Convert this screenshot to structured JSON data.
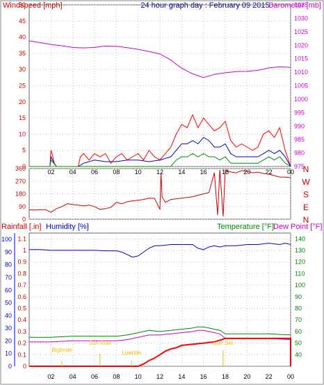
{
  "chart_data": [
    {
      "type": "line",
      "title": "24 hour graph day : February 09 2015",
      "left_axis_label": "Windspeed [mph]",
      "right_axis_label": "Barometer [mb]",
      "x_ticks": [
        "02",
        "04",
        "06",
        "08",
        "10",
        "12",
        "14",
        "16",
        "18",
        "20",
        "22",
        "00"
      ],
      "left_ticks": [
        "0",
        "5",
        "10",
        "15",
        "20",
        "25",
        "30",
        "35",
        "40",
        "45",
        "50"
      ],
      "right_ticks": [
        "975",
        "980",
        "985",
        "990",
        "995",
        "1000",
        "1005",
        "1010",
        "1015",
        "1020",
        "1025",
        "1030",
        "1035"
      ],
      "ylim_left": [
        0,
        50
      ],
      "ylim_right": [
        975,
        1035
      ],
      "colors": {
        "windspeed": "#cc0000",
        "gust": "#ff0000",
        "average": "#0000cc",
        "low": "#008800",
        "barometer": "#cc00cc"
      },
      "series": [
        {
          "axis": "right",
          "color": "#cc00cc",
          "x": [
            0,
            1,
            2,
            3,
            4,
            5,
            6,
            7,
            8,
            9,
            10,
            11,
            12,
            13,
            14,
            15,
            16,
            17,
            18,
            19,
            20,
            21,
            22,
            23,
            24
          ],
          "values": [
            1021.6,
            1021,
            1020.3,
            1019.8,
            1019.2,
            1019,
            1019.2,
            1019.7,
            1019.6,
            1019.1,
            1018.5,
            1017.7,
            1016.8,
            1014.5,
            1011.5,
            1009.4,
            1008,
            1009.2,
            1009.8,
            1010.2,
            1010.3,
            1010.7,
            1011.6,
            1012,
            1011.8
          ]
        },
        {
          "axis": "left",
          "color": "#ff0000",
          "x": [
            0,
            1.9,
            2,
            2.1,
            2.3,
            2.5,
            4.5,
            4.7,
            5,
            5.5,
            6,
            6.5,
            7,
            7.5,
            8,
            8.5,
            9,
            9.5,
            10,
            10.5,
            11,
            11.5,
            12,
            12.5,
            13,
            13.5,
            14,
            14.5,
            15,
            15.5,
            16,
            16.5,
            17,
            17.5,
            18,
            18.5,
            19,
            19.5,
            20,
            20.5,
            21,
            21.5,
            22,
            22.5,
            23,
            23.5,
            24
          ],
          "values": [
            0,
            0,
            5,
            4,
            1,
            0,
            0,
            3,
            4,
            2,
            4,
            3,
            4,
            1,
            3,
            4,
            2,
            3,
            4,
            2,
            5,
            3,
            2,
            4,
            6,
            10,
            13,
            12,
            16,
            12,
            15,
            13,
            11,
            12,
            14,
            8,
            6,
            7,
            6,
            5,
            6,
            10,
            11,
            9,
            12,
            5,
            0
          ]
        },
        {
          "axis": "left",
          "color": "#0000cc",
          "x": [
            0,
            1.9,
            2,
            2.3,
            2.5,
            4.5,
            5,
            6,
            7,
            8,
            9,
            10,
            11,
            12,
            13,
            13.5,
            14,
            14.5,
            15,
            15.5,
            16,
            16.5,
            17,
            17.5,
            18,
            18.5,
            19,
            20,
            21,
            21.5,
            22,
            22.5,
            23,
            23.5,
            24
          ],
          "values": [
            0,
            0,
            3,
            1,
            0,
            0,
            1,
            2,
            1.5,
            1.5,
            2,
            2,
            1.5,
            2,
            3,
            5,
            7,
            7,
            8,
            7,
            9,
            8,
            6,
            6,
            7,
            4,
            3,
            3,
            3,
            4,
            5,
            4,
            5,
            3,
            0
          ]
        },
        {
          "axis": "left",
          "color": "#008800",
          "x": [
            0,
            1.9,
            2,
            2.5,
            13,
            13.5,
            14,
            14.5,
            15,
            15.5,
            16,
            16.5,
            17,
            17.5,
            18,
            18.5,
            19,
            20,
            21,
            21.5,
            22,
            22.5,
            23,
            23.5,
            24
          ],
          "values": [
            0,
            0,
            2,
            0,
            0,
            2,
            3,
            3,
            4,
            3,
            4,
            3,
            3,
            2,
            3,
            1,
            1,
            1,
            1,
            2,
            3,
            2,
            3,
            1,
            0
          ]
        }
      ]
    },
    {
      "type": "line",
      "title": "",
      "right_labels": [
        "N",
        "W",
        "S",
        "E",
        "N"
      ],
      "left_ticks": [
        "0",
        "90",
        "180",
        "270",
        "360"
      ],
      "x_ticks": [
        "02",
        "04",
        "06",
        "08",
        "10",
        "12",
        "14",
        "16",
        "18",
        "20",
        "22",
        "00"
      ],
      "ylim": [
        0,
        360
      ],
      "series": [
        {
          "color": "#cc0000",
          "x": [
            0,
            0.5,
            1,
            1.5,
            2,
            2.5,
            3,
            3.5,
            4,
            4.5,
            5,
            5.5,
            6,
            6.5,
            7,
            7.5,
            8,
            8.5,
            9,
            9.5,
            10,
            10.5,
            11,
            11.5,
            12,
            12.1,
            12.2,
            12.5,
            13,
            13.5,
            14,
            14.5,
            15,
            15.5,
            16,
            16.5,
            17,
            17.3,
            17.5,
            17.8,
            18,
            18.3,
            18.6,
            19,
            19.5,
            20,
            20.5,
            21,
            21.5,
            22,
            22.5,
            23,
            23.5,
            24
          ],
          "values": [
            66,
            65,
            67,
            68,
            50,
            75,
            90,
            110,
            105,
            100,
            95,
            100,
            90,
            70,
            75,
            85,
            120,
            110,
            125,
            130,
            135,
            140,
            150,
            148,
            70,
            330,
            160,
            120,
            140,
            145,
            150,
            155,
            160,
            170,
            180,
            190,
            330,
            30,
            350,
            20,
            350,
            340,
            335,
            330,
            345,
            340,
            330,
            335,
            325,
            320,
            310,
            300,
            300,
            295
          ]
        }
      ]
    },
    {
      "type": "line",
      "title": "",
      "axis_labels": [
        "Rainfall [.in]",
        "Humidity [%]",
        "Temperature [°F]",
        "Dew Point [°F]"
      ],
      "rain_ticks": [
        "0",
        "0.1",
        "0.2",
        "0.3",
        "0.4",
        "0.5",
        "0.6",
        "0.7",
        "0.8",
        "0.9",
        "1",
        "1.1"
      ],
      "humidity_ticks": [
        "0",
        "10",
        "20",
        "30",
        "40",
        "50",
        "60",
        "70",
        "80",
        "90",
        "100"
      ],
      "temp_ticks": [
        "40",
        "50",
        "60",
        "70",
        "80",
        "90",
        "100",
        "110",
        "120",
        "130",
        "140"
      ],
      "x_ticks": [
        "02",
        "04",
        "06",
        "08",
        "10",
        "12",
        "14",
        "16",
        "18",
        "20",
        "22",
        "00"
      ],
      "annotations": [
        "Bigbride",
        "Sun Rise",
        "Lowride",
        "Sun Set"
      ],
      "series": [
        {
          "name": "Humidity",
          "color": "#0000cc",
          "unit": "%",
          "x": [
            0,
            1,
            2,
            3,
            4,
            5,
            6,
            7,
            8,
            8.5,
            9,
            9.5,
            10,
            10.5,
            11,
            11.5,
            12,
            13,
            14,
            15,
            15.5,
            16,
            16.5,
            17,
            17.5,
            18,
            19,
            20,
            21,
            22,
            23,
            23.5,
            24
          ],
          "values": [
            92,
            92,
            91.5,
            91.5,
            91.5,
            91.5,
            91.5,
            91,
            91,
            90,
            88,
            86,
            87,
            90,
            93,
            95,
            95,
            96,
            96,
            96,
            93,
            92,
            94,
            95,
            94,
            95,
            95,
            96,
            96,
            97,
            96,
            97,
            96
          ]
        },
        {
          "name": "Temperature",
          "color": "#008800",
          "unit": "°F",
          "x": [
            0,
            2,
            4,
            6,
            8,
            9,
            10,
            11,
            12,
            13,
            14,
            15,
            15.5,
            16,
            16.5,
            17,
            17.5,
            18,
            19,
            20,
            22,
            24
          ],
          "values": [
            55,
            55,
            56,
            56,
            56,
            57,
            59,
            61,
            60,
            61,
            62,
            63,
            64,
            64,
            63,
            62,
            61,
            58,
            58,
            58,
            58,
            57
          ]
        },
        {
          "name": "Dew Point",
          "color": "#cc00cc",
          "unit": "°F",
          "x": [
            0,
            2,
            4,
            6,
            8,
            9,
            10,
            11,
            12,
            13,
            14,
            15,
            15.5,
            16,
            16.5,
            17,
            17.5,
            18,
            19,
            20,
            22,
            24
          ],
          "values": [
            51,
            51,
            52,
            52,
            52,
            53,
            55,
            57,
            57,
            58,
            59,
            60,
            61,
            61,
            60,
            59,
            58,
            54,
            54,
            54,
            54,
            53
          ]
        },
        {
          "name": "Rainfall",
          "color": "#ff0000",
          "unit": "in",
          "x": [
            0,
            10,
            10.5,
            11,
            11.5,
            12,
            12.5,
            13,
            13.5,
            14,
            15,
            16,
            17,
            18,
            24,
            24
          ],
          "values": [
            0,
            0,
            0.02,
            0.05,
            0.07,
            0.1,
            0.13,
            0.15,
            0.16,
            0.18,
            0.19,
            0.2,
            0.21,
            0.24,
            0.24,
            0
          ]
        }
      ]
    }
  ]
}
